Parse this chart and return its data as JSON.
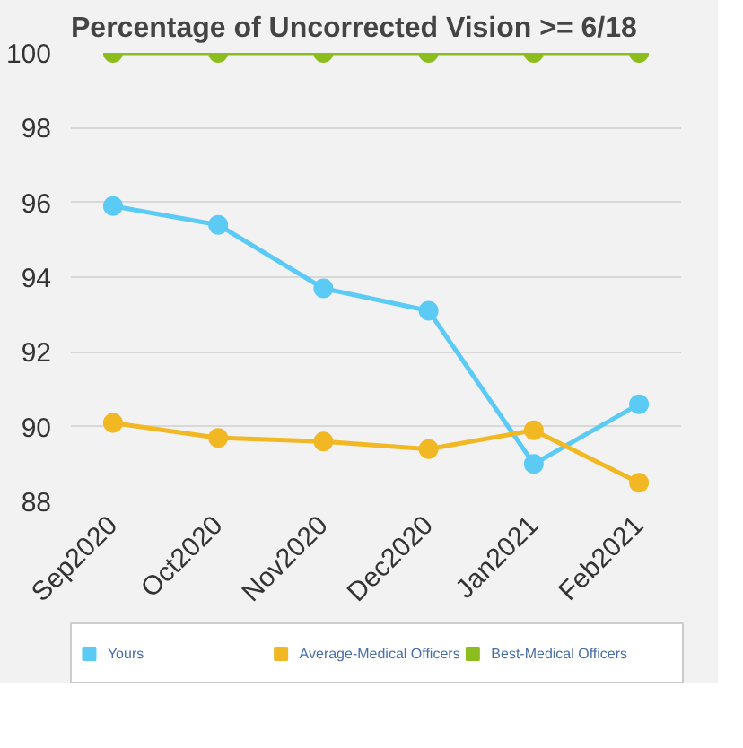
{
  "chart_data": {
    "type": "line",
    "title": "Percentage of Uncorrected Vision >= 6/18",
    "categories": [
      "Sep2020",
      "Oct2020",
      "Nov2020",
      "Dec2020",
      "Jan2021",
      "Feb2021"
    ],
    "series": [
      {
        "name": "Yours",
        "color": "#5bcbf5",
        "values": [
          95.9,
          95.4,
          93.7,
          93.1,
          89.0,
          90.6
        ]
      },
      {
        "name": "Average-Medical Officers",
        "color": "#f2b824",
        "values": [
          90.1,
          89.7,
          89.6,
          89.4,
          89.9,
          88.5
        ]
      },
      {
        "name": "Best-Medical Officers",
        "color": "#8cbd1e",
        "values": [
          100,
          100,
          100,
          100,
          100,
          100
        ]
      }
    ],
    "ylim": [
      88,
      100
    ],
    "yticks": [
      88,
      90,
      92,
      94,
      96,
      98,
      100
    ],
    "grid": "y",
    "legend": "bottom",
    "marker": "circle",
    "line_style": "solid"
  }
}
